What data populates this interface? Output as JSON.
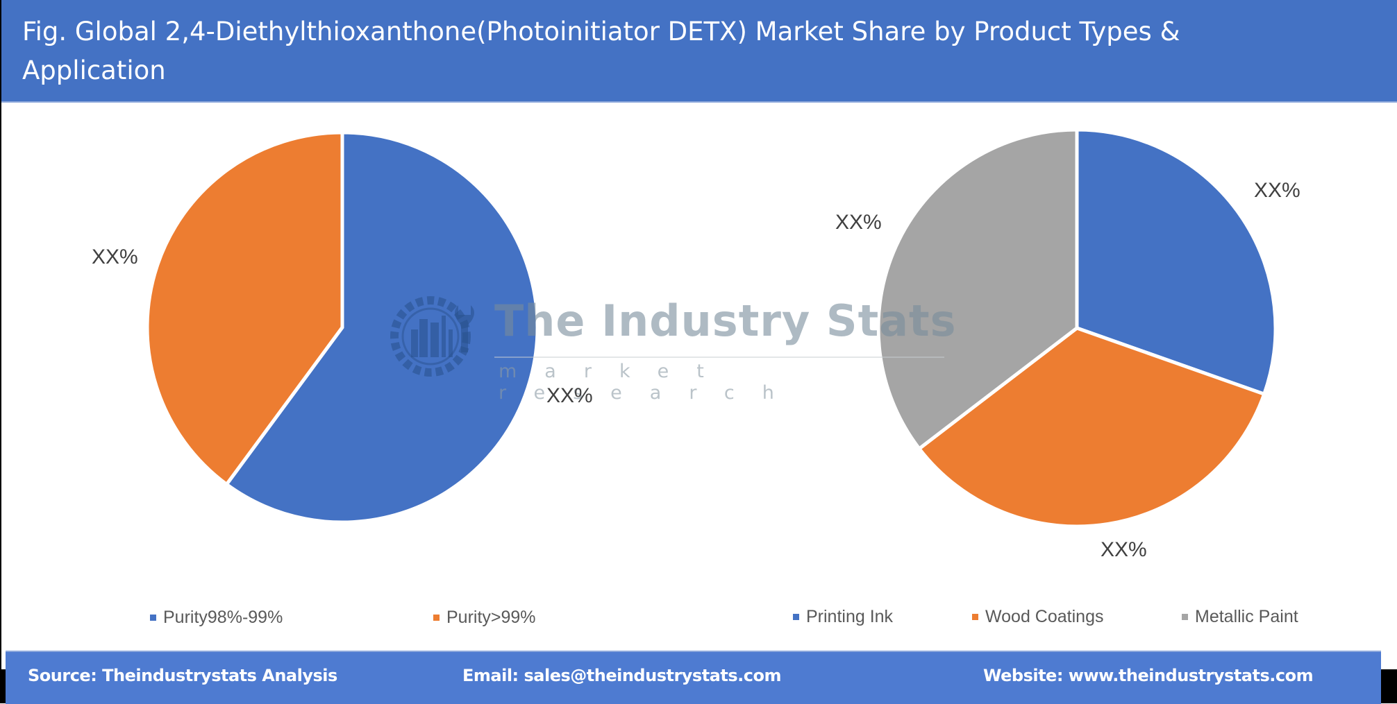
{
  "header": {
    "title": "Fig. Global 2,4-Diethylthioxanthone(Photoinitiator DETX) Market Share by Product Types & Application"
  },
  "colors": {
    "header_bg": "#4472C4",
    "footer_bg": "#4E7BD1",
    "blue": "#4472C4",
    "orange": "#ED7D31",
    "gray": "#A5A5A5"
  },
  "watermark": {
    "title": "The Industry Stats",
    "subtitle": "market research"
  },
  "chart_data": [
    {
      "type": "pie",
      "title": "Product Types",
      "categories": [
        "Purity98%-99%",
        "Purity>99%"
      ],
      "values": [
        60.1,
        39.9
      ],
      "labels": [
        "XX%",
        "XX%"
      ],
      "colors": [
        "#4472C4",
        "#ED7D31"
      ],
      "legend_position": "bottom",
      "start_angle": 0,
      "direction": "clockwise"
    },
    {
      "type": "pie",
      "title": "Application",
      "categories": [
        "Printing Ink",
        "Wood Coatings",
        "Metallic Paint"
      ],
      "values": [
        30.4,
        34.2,
        35.4
      ],
      "labels": [
        "XX%",
        "XX%",
        "XX%"
      ],
      "colors": [
        "#4472C4",
        "#ED7D31",
        "#A5A5A5"
      ],
      "legend_position": "bottom",
      "start_angle": 0,
      "direction": "clockwise"
    }
  ],
  "footer": {
    "source": "Source: Theindustrystats Analysis",
    "email": "Email: sales@theindustrystats.com",
    "website": "Website: www.theindustrystats.com"
  }
}
